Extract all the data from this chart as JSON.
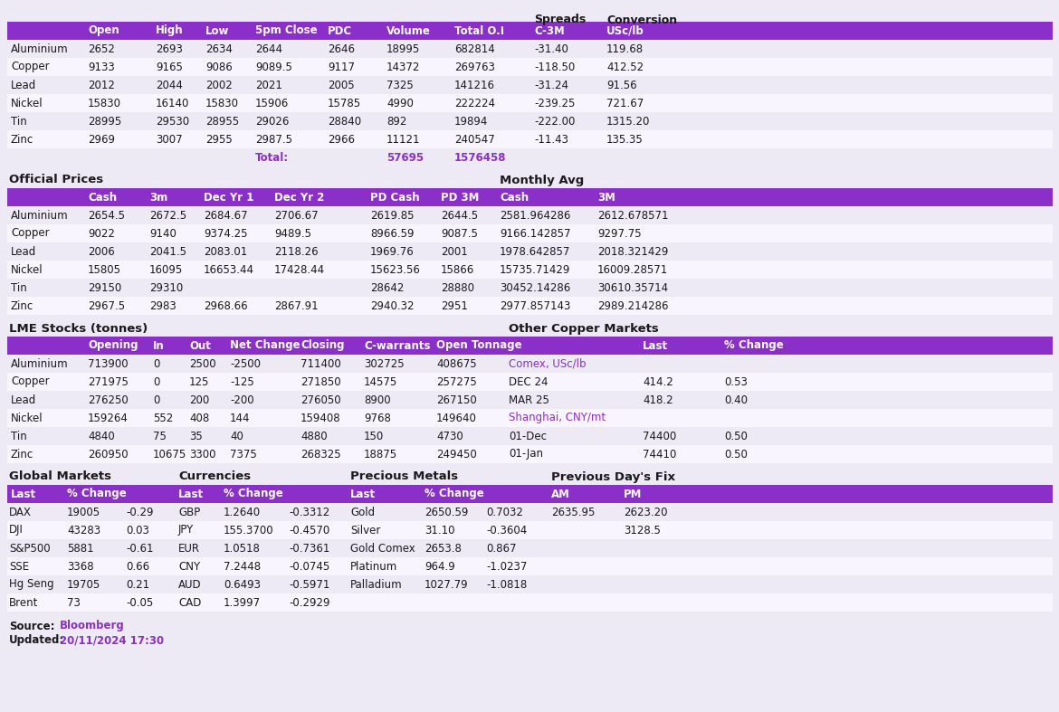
{
  "bg_color": "#ede9f5",
  "header_bg": "#8B2FC9",
  "header_text_color": "#ffffff",
  "row_alt_color": "#ede9f5",
  "row_white_color": "#f8f5ff",
  "purple_text": "#8B2FC9",
  "black_text": "#1a1a1a",
  "section1_headers": [
    "",
    "Open",
    "High",
    "Low",
    "5pm Close",
    "PDC",
    "Volume",
    "Total O.I",
    "C-3M",
    "USc/lb"
  ],
  "section1_rows": [
    [
      "Aluminium",
      "2652",
      "2693",
      "2634",
      "2644",
      "2646",
      "18995",
      "682814",
      "-31.40",
      "119.68"
    ],
    [
      "Copper",
      "9133",
      "9165",
      "9086",
      "9089.5",
      "9117",
      "14372",
      "269763",
      "-118.50",
      "412.52"
    ],
    [
      "Lead",
      "2012",
      "2044",
      "2002",
      "2021",
      "2005",
      "7325",
      "141216",
      "-31.24",
      "91.56"
    ],
    [
      "Nickel",
      "15830",
      "16140",
      "15830",
      "15906",
      "15785",
      "4990",
      "222224",
      "-239.25",
      "721.67"
    ],
    [
      "Tin",
      "28995",
      "29530",
      "28955",
      "29026",
      "28840",
      "892",
      "19894",
      "-222.00",
      "1315.20"
    ],
    [
      "Zinc",
      "2969",
      "3007",
      "2955",
      "2987.5",
      "2966",
      "11121",
      "240547",
      "-11.43",
      "135.35"
    ]
  ],
  "section1_total_label": "Total:",
  "section1_total_volume": "57695",
  "section1_total_oi": "1576458",
  "section2_title_left": "Official Prices",
  "section2_title_right": "Monthly Avg",
  "section2_headers": [
    "",
    "Cash",
    "3m",
    "Dec Yr 1",
    "Dec Yr 2",
    "",
    "PD Cash",
    "PD 3M",
    "Cash",
    "3M"
  ],
  "section2_rows": [
    [
      "Aluminium",
      "2654.5",
      "2672.5",
      "2684.67",
      "2706.67",
      "",
      "2619.85",
      "2644.5",
      "2581.964286",
      "2612.678571"
    ],
    [
      "Copper",
      "9022",
      "9140",
      "9374.25",
      "9489.5",
      "",
      "8966.59",
      "9087.5",
      "9166.142857",
      "9297.75"
    ],
    [
      "Lead",
      "2006",
      "2041.5",
      "2083.01",
      "2118.26",
      "",
      "1969.76",
      "2001",
      "1978.642857",
      "2018.321429"
    ],
    [
      "Nickel",
      "15805",
      "16095",
      "16653.44",
      "17428.44",
      "",
      "15623.56",
      "15866",
      "15735.71429",
      "16009.28571"
    ],
    [
      "Tin",
      "29150",
      "29310",
      "",
      "",
      "",
      "28642",
      "28880",
      "30452.14286",
      "30610.35714"
    ],
    [
      "Zinc",
      "2967.5",
      "2983",
      "2968.66",
      "2867.91",
      "",
      "2940.32",
      "2951",
      "2977.857143",
      "2989.214286"
    ]
  ],
  "section3_title_left": "LME Stocks (tonnes)",
  "section3_title_right": "Other Copper Markets",
  "section3_headers": [
    "",
    "Opening",
    "In",
    "Out",
    "Net Change",
    "Closing",
    "C-warrants",
    "Open Tonnage",
    "",
    "Last",
    "% Change"
  ],
  "section3_rows": [
    [
      "Aluminium",
      "713900",
      "0",
      "2500",
      "-2500",
      "711400",
      "302725",
      "408675",
      "Comex, USc/lb",
      "",
      ""
    ],
    [
      "Copper",
      "271975",
      "0",
      "125",
      "-125",
      "271850",
      "14575",
      "257275",
      "DEC 24",
      "414.2",
      "0.53"
    ],
    [
      "Lead",
      "276250",
      "0",
      "200",
      "-200",
      "276050",
      "8900",
      "267150",
      "MAR 25",
      "418.2",
      "0.40"
    ],
    [
      "Nickel",
      "159264",
      "552",
      "408",
      "144",
      "159408",
      "9768",
      "149640",
      "Shanghai, CNY/mt",
      "",
      ""
    ],
    [
      "Tin",
      "4840",
      "75",
      "35",
      "40",
      "4880",
      "150",
      "4730",
      "01-Dec",
      "74400",
      "0.50"
    ],
    [
      "Zinc",
      "260950",
      "10675",
      "3300",
      "7375",
      "268325",
      "18875",
      "249450",
      "01-Jan",
      "74410",
      "0.50"
    ]
  ],
  "section4_title_gm": "Global Markets",
  "section4_title_curr": "Currencies",
  "section4_title_pm": "Precious Metals",
  "section4_title_prev": "Previous Day's Fix",
  "section4_gm_rows": [
    [
      "DAX",
      "19005",
      "-0.29"
    ],
    [
      "DJI",
      "43283",
      "0.03"
    ],
    [
      "S&P500",
      "5881",
      "-0.61"
    ],
    [
      "SSE",
      "3368",
      "0.66"
    ],
    [
      "Hg Seng",
      "19705",
      "0.21"
    ],
    [
      "Brent",
      "73",
      "-0.05"
    ]
  ],
  "section4_curr_rows": [
    [
      "GBP",
      "1.2640",
      "-0.3312"
    ],
    [
      "JPY",
      "155.3700",
      "-0.4570"
    ],
    [
      "EUR",
      "1.0518",
      "-0.7361"
    ],
    [
      "CNY",
      "7.2448",
      "-0.0745"
    ],
    [
      "AUD",
      "0.6493",
      "-0.5971"
    ],
    [
      "CAD",
      "1.3997",
      "-0.2929"
    ]
  ],
  "section4_pm_rows": [
    [
      "Gold",
      "2650.59",
      "0.7032"
    ],
    [
      "Silver",
      "31.10",
      "-0.3604"
    ],
    [
      "Gold Comex",
      "2653.8",
      "0.867"
    ],
    [
      "Platinum",
      "964.9",
      "-1.0237"
    ],
    [
      "Palladium",
      "1027.79",
      "-1.0818"
    ],
    [
      "",
      "",
      ""
    ]
  ],
  "section4_prev_rows": [
    [
      "2635.95",
      "2623.20"
    ],
    [
      "",
      "3128.5"
    ],
    [
      "",
      ""
    ],
    [
      "",
      ""
    ],
    [
      "",
      ""
    ],
    [
      "",
      ""
    ]
  ],
  "source_label": "Source:",
  "source_value": "Bloomberg",
  "updated_label": "Updated:",
  "updated_value": "20/11/2024 17:30"
}
